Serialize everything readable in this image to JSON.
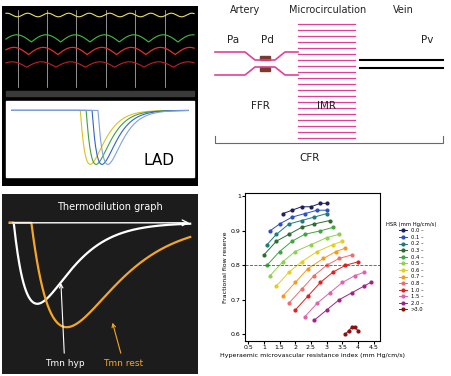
{
  "screenshot": {
    "label": "LAD"
  },
  "diagram": {
    "sections": [
      "Artery",
      "Microcirculation",
      "Vein"
    ],
    "pressures": [
      "Pa",
      "Pd",
      "Pv"
    ],
    "indices": [
      "FFR",
      "IMR"
    ],
    "total_index": "CFR"
  },
  "thermodilution": {
    "title": "Thermodilution graph",
    "curves": [
      {
        "label": "Tmn hyp",
        "color": "#ffffff"
      },
      {
        "label": "Tmn rest",
        "color": "#f5a623"
      }
    ]
  },
  "chart_data": {
    "type": "scatter",
    "x_label": "Hyperaemic microvascular resistance index (mm Hg/cm/s)",
    "y_label": "Fractional flow reserve",
    "legend_title": "HSR (mm Hg/cm/s)",
    "legend": "right",
    "marker": "o",
    "line_style": "solid",
    "grid": false,
    "reference_line": 0.8,
    "xlim": [
      0.4,
      4.7
    ],
    "ylim": [
      0.58,
      1.01
    ],
    "xticks": [
      0.5,
      1,
      1.5,
      2,
      2.5,
      3,
      3.5,
      4,
      4.5
    ],
    "yticks": [
      0.6,
      0.7,
      0.8,
      0.9,
      1
    ],
    "series": [
      {
        "name": "0.0 –",
        "color": "#1b1f5e",
        "x": [
          1.6,
          1.9,
          2.2,
          2.5,
          2.8,
          3.0
        ],
        "values": [
          0.95,
          0.96,
          0.97,
          0.97,
          0.98,
          0.98
        ]
      },
      {
        "name": "0.1 –",
        "color": "#2b4fc7",
        "x": [
          1.2,
          1.5,
          1.9,
          2.3,
          2.7,
          3.0
        ],
        "values": [
          0.9,
          0.92,
          0.94,
          0.95,
          0.96,
          0.96
        ]
      },
      {
        "name": "0.2 –",
        "color": "#1f7a7a",
        "x": [
          1.1,
          1.4,
          1.8,
          2.2,
          2.6,
          3.0
        ],
        "values": [
          0.86,
          0.89,
          0.92,
          0.93,
          0.94,
          0.95
        ]
      },
      {
        "name": "0.3 –",
        "color": "#2e6b2e",
        "x": [
          1.0,
          1.4,
          1.8,
          2.2,
          2.6,
          3.1
        ],
        "values": [
          0.83,
          0.87,
          0.89,
          0.91,
          0.92,
          0.93
        ]
      },
      {
        "name": "0.4 –",
        "color": "#3fa53f",
        "x": [
          1.1,
          1.5,
          1.9,
          2.3,
          2.8,
          3.2
        ],
        "values": [
          0.8,
          0.84,
          0.87,
          0.89,
          0.9,
          0.91
        ]
      },
      {
        "name": "0.5 –",
        "color": "#8fd14f",
        "x": [
          1.2,
          1.6,
          2.0,
          2.5,
          3.0,
          3.4
        ],
        "values": [
          0.77,
          0.81,
          0.84,
          0.86,
          0.88,
          0.89
        ]
      },
      {
        "name": "0.6 –",
        "color": "#e0d020",
        "x": [
          1.4,
          1.8,
          2.2,
          2.7,
          3.2,
          3.5
        ],
        "values": [
          0.74,
          0.78,
          0.81,
          0.84,
          0.86,
          0.87
        ]
      },
      {
        "name": "0.7 –",
        "color": "#f59a20",
        "x": [
          1.6,
          2.0,
          2.4,
          2.9,
          3.3,
          3.6
        ],
        "values": [
          0.71,
          0.75,
          0.79,
          0.82,
          0.84,
          0.85
        ]
      },
      {
        "name": "0.8 –",
        "color": "#f46a6a",
        "x": [
          1.8,
          2.2,
          2.6,
          3.0,
          3.4,
          3.8
        ],
        "values": [
          0.69,
          0.73,
          0.77,
          0.8,
          0.82,
          0.83
        ]
      },
      {
        "name": "1.0 –",
        "color": "#e02020",
        "x": [
          2.0,
          2.4,
          2.8,
          3.2,
          3.6,
          4.0
        ],
        "values": [
          0.67,
          0.71,
          0.75,
          0.78,
          0.8,
          0.81
        ]
      },
      {
        "name": "1.5 –",
        "color": "#e060b0",
        "x": [
          2.3,
          2.7,
          3.1,
          3.5,
          3.9,
          4.2
        ],
        "values": [
          0.65,
          0.69,
          0.72,
          0.75,
          0.77,
          0.78
        ]
      },
      {
        "name": "2.0 –",
        "color": "#a0208a",
        "x": [
          2.6,
          3.0,
          3.4,
          3.8,
          4.2,
          4.4
        ],
        "values": [
          0.64,
          0.67,
          0.7,
          0.72,
          0.74,
          0.75
        ]
      },
      {
        "name": ">3.0",
        "color": "#8b1010",
        "x": [
          3.6,
          3.7,
          3.8,
          3.9,
          4.0
        ],
        "values": [
          0.6,
          0.61,
          0.62,
          0.62,
          0.61
        ]
      }
    ]
  }
}
